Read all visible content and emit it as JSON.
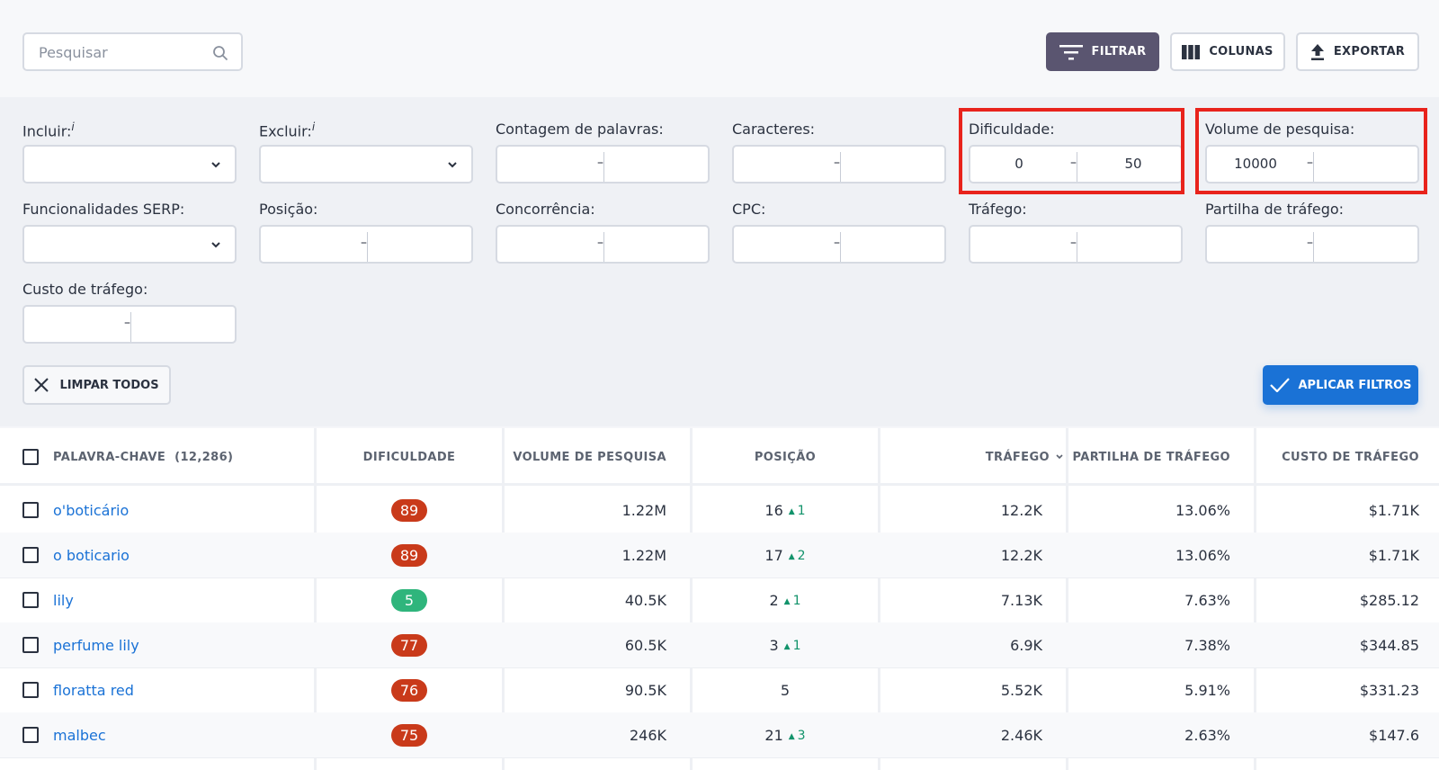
{
  "search": {
    "placeholder": "Pesquisar"
  },
  "toolbar": {
    "filter_label": "FILTRAR",
    "columns_label": "COLUNAS",
    "export_label": "EXPORTAR"
  },
  "filters": {
    "include": {
      "label": "Incluir:",
      "info": "i"
    },
    "exclude": {
      "label": "Excluir:",
      "info": "i"
    },
    "word_count": {
      "label": "Contagem de palavras:"
    },
    "characters": {
      "label": "Caracteres:"
    },
    "difficulty": {
      "label": "Dificuldade:",
      "min": "0",
      "max": "50"
    },
    "search_volume": {
      "label": "Volume de pesquisa:",
      "min": "10000",
      "max": ""
    },
    "serp_features": {
      "label": "Funcionalidades SERP:"
    },
    "position": {
      "label": "Posição:"
    },
    "competition": {
      "label": "Concorrência:"
    },
    "cpc": {
      "label": "CPC:"
    },
    "traffic": {
      "label": "Tráfego:"
    },
    "traffic_share": {
      "label": "Partilha de tráfego:"
    },
    "traffic_cost": {
      "label": "Custo de tráfego:"
    },
    "dash": "–",
    "clear_all_label": "LIMPAR TODOS",
    "apply_label": "APLICAR FILTROS"
  },
  "colors": {
    "accent": "#1a72d6",
    "filter_button": "#5a5570",
    "highlight": "#e8231c",
    "badge_hard": "#c93a1a",
    "badge_easy": "#2fb57c",
    "trend_up": "#12936b"
  },
  "table": {
    "headers": {
      "keyword": "PALAVRA-CHAVE",
      "keyword_count": "(12,286)",
      "difficulty": "DIFICULDADE",
      "volume": "VOLUME DE PESQUISA",
      "position": "POSIÇÃO",
      "traffic": "TRÁFEGO",
      "traffic_share": "PARTILHA DE TRÁFEGO",
      "traffic_cost": "CUSTO DE TRÁFEGO"
    },
    "rows": [
      {
        "keyword": "o'boticário",
        "difficulty": "89",
        "volume": "1.22M",
        "position": "16",
        "change": "1",
        "traffic": "12.2K",
        "share": "13.06%",
        "cost": "$1.71K"
      },
      {
        "keyword": "o boticario",
        "difficulty": "89",
        "volume": "1.22M",
        "position": "17",
        "change": "2",
        "traffic": "12.2K",
        "share": "13.06%",
        "cost": "$1.71K"
      },
      {
        "keyword": "lily",
        "difficulty": "5",
        "volume": "40.5K",
        "position": "2",
        "change": "1",
        "traffic": "7.13K",
        "share": "7.63%",
        "cost": "$285.12"
      },
      {
        "keyword": "perfume lily",
        "difficulty": "77",
        "volume": "60.5K",
        "position": "3",
        "change": "1",
        "traffic": "6.9K",
        "share": "7.38%",
        "cost": "$344.85"
      },
      {
        "keyword": "floratta red",
        "difficulty": "76",
        "volume": "90.5K",
        "position": "5",
        "change": "",
        "traffic": "5.52K",
        "share": "5.91%",
        "cost": "$331.23"
      },
      {
        "keyword": "malbec",
        "difficulty": "75",
        "volume": "246K",
        "position": "21",
        "change": "3",
        "traffic": "2.46K",
        "share": "2.63%",
        "cost": "$147.6"
      }
    ]
  }
}
